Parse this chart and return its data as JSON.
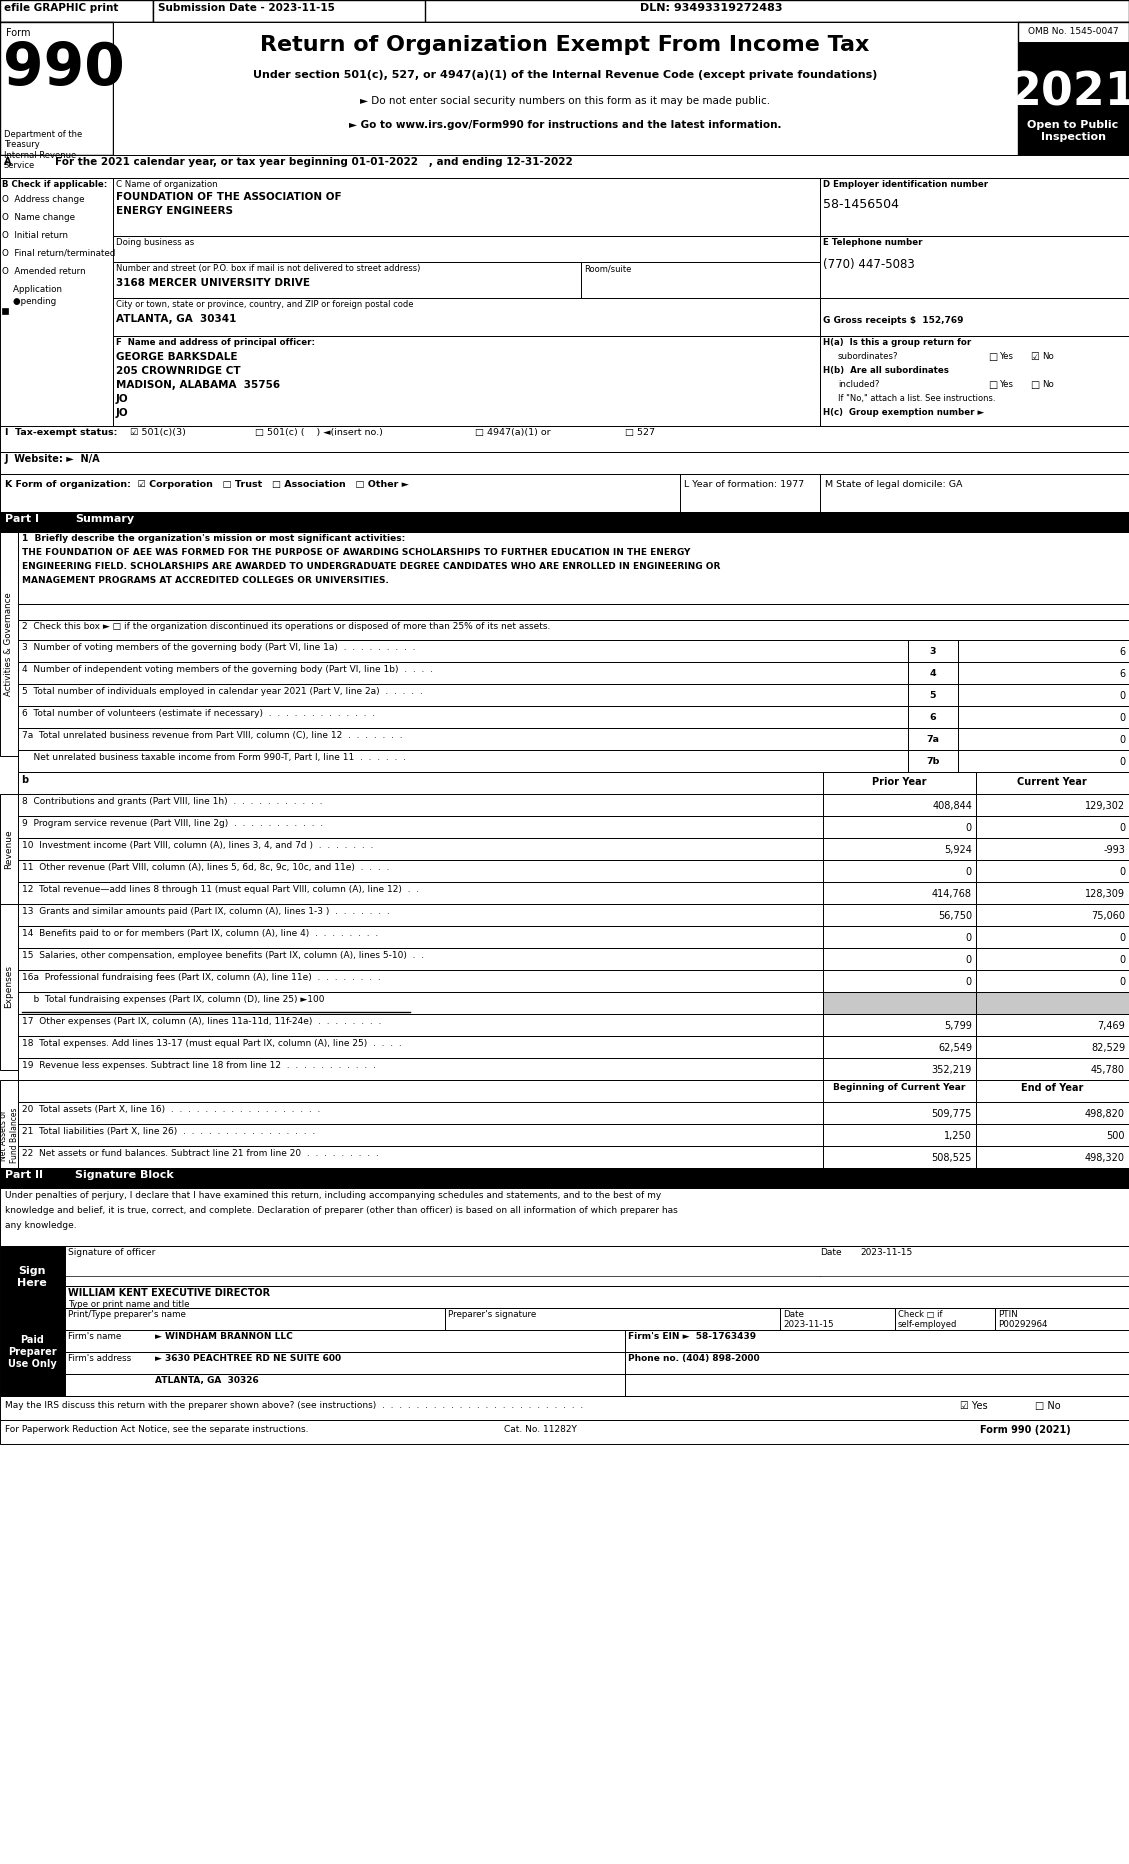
{
  "title": "Return of Organization Exempt From Income Tax",
  "form_number": "990",
  "year": "2021",
  "omb": "OMB No. 1545-0047",
  "efile_text": "efile GRAPHIC print",
  "submission_date": "Submission Date - 2023-11-15",
  "dln": "DLN: 93493319272483",
  "under_section": "Under section 501(c), 527, or 4947(a)(1) of the Internal Revenue Code (except private foundations)",
  "do_not_enter": "► Do not enter social security numbers on this form as it may be made public.",
  "go_to": "► Go to www.irs.gov/Form990 for instructions and the latest information.",
  "calendar_year": "For the 2021 calendar year, or tax year beginning 01-01-2022   , and ending 12-31-2022",
  "org_name1": "FOUNDATION OF THE ASSOCIATION OF",
  "org_name2": "ENERGY ENGINEERS",
  "dba_label": "Doing business as",
  "address": "3168 MERCER UNIVERSITY DRIVE",
  "city": "ATLANTA, GA  30341",
  "ein": "58-1456504",
  "phone": "(770) 447-5083",
  "gross_receipts": "152,769",
  "principal_name": "GEORGE BARKSDALE",
  "principal_addr1": "205 CROWNRIDGE CT",
  "principal_addr2": "MADISON, ALABAMA  35756",
  "principal_addr3": "JO",
  "sig_date": "2023-11-15",
  "officer_name": "WILLIAM KENT EXECUTIVE DIRECTOR",
  "preparer_date": "2023-11-15",
  "preparer_ptin": "P00292964",
  "firm_name": "► WINDHAM BRANNON LLC",
  "firm_ein": "58-1763439",
  "firm_addr": "► 3630 PEACHTREE RD NE SUITE 600",
  "firm_city": "ATLANTA, GA  30326",
  "firm_phone": "(404) 898-2000",
  "cat_no": "Cat. No. 11282Y",
  "form_footer": "Form 990 (2021)"
}
